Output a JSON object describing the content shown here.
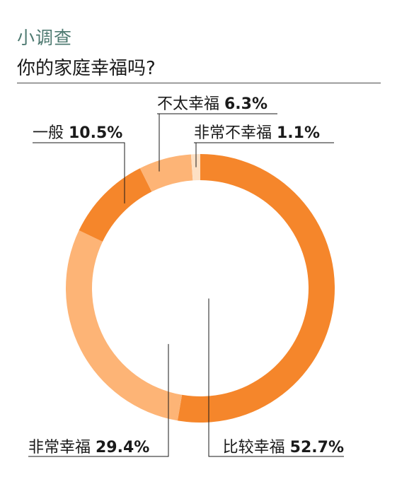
{
  "header": {
    "kicker": "小调查",
    "question": "你的家庭幸福吗?"
  },
  "chart_data": {
    "type": "pie",
    "categories": [
      "比较幸福",
      "非常幸福",
      "一般",
      "不太幸福",
      "非常不幸福"
    ],
    "values": [
      52.7,
      29.4,
      10.5,
      6.3,
      1.1
    ],
    "value_labels": [
      "52.7%",
      "29.4%",
      "10.5%",
      "6.3%",
      "1.1%"
    ],
    "colors": [
      "#f5862b",
      "#fdb476",
      "#f5862b",
      "#fdb476",
      "#fde0c4"
    ],
    "style": "donut",
    "start": "top",
    "direction": "clockwise"
  }
}
